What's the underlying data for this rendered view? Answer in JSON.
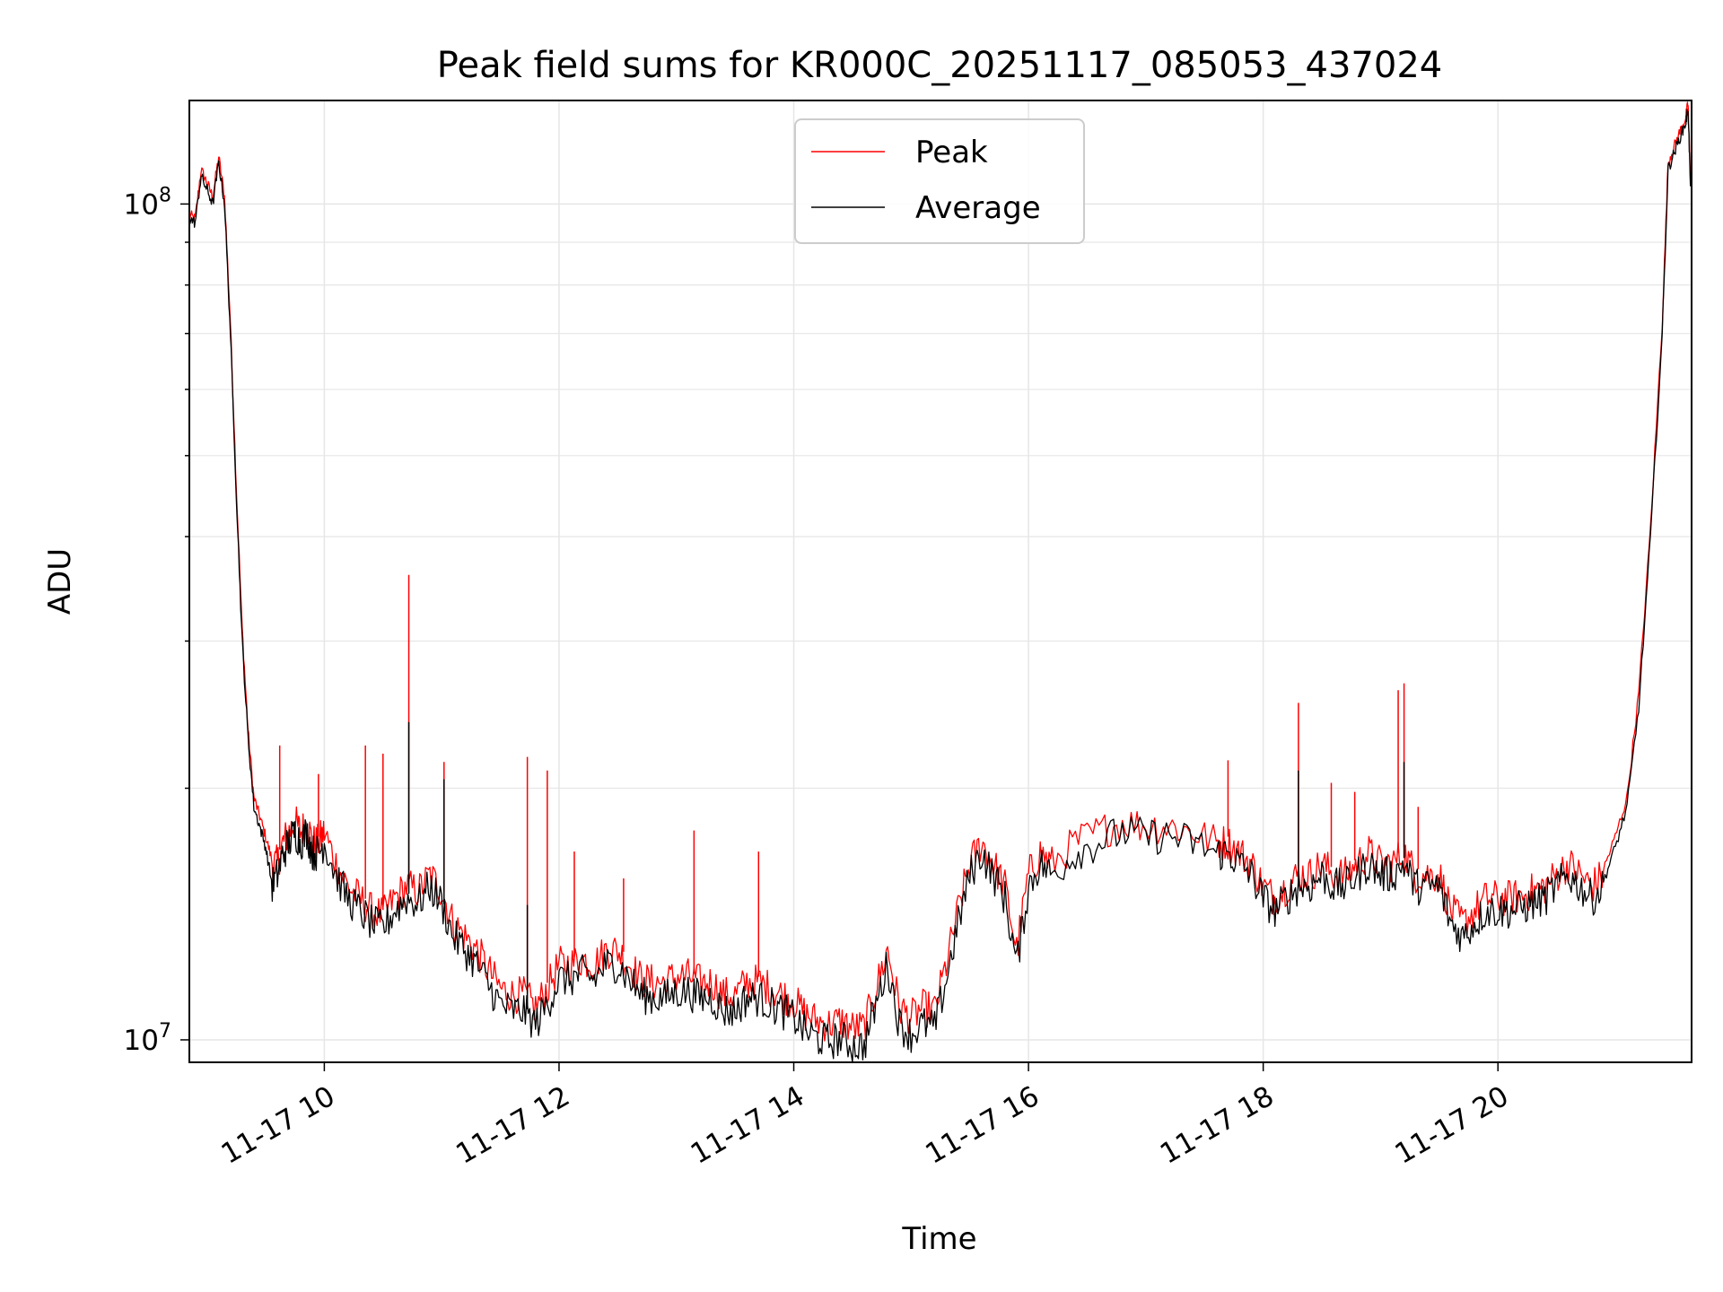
{
  "chart_data": {
    "type": "line",
    "title": "Peak field sums for KR000C_20251117_085053_437024",
    "xlabel": "Time",
    "ylabel": "ADU",
    "x_unit": "hours of 2025-11-17",
    "xlim": [
      8.85,
      21.65
    ],
    "ylim": [
      9400000,
      133000000
    ],
    "yscale": "log",
    "grid": true,
    "legend_position": "upper-center",
    "x_ticks": [
      {
        "value": 10,
        "label": "11-17 10"
      },
      {
        "value": 12,
        "label": "11-17 12"
      },
      {
        "value": 14,
        "label": "11-17 14"
      },
      {
        "value": 16,
        "label": "11-17 16"
      },
      {
        "value": 18,
        "label": "11-17 18"
      },
      {
        "value": 20,
        "label": "11-17 20"
      }
    ],
    "y_ticks": [
      {
        "value": 10000000,
        "base": "10",
        "exp": "7"
      },
      {
        "value": 100000000,
        "base": "10",
        "exp": "8"
      }
    ],
    "series": [
      {
        "name": "Average",
        "color": "#000000",
        "x": [
          8.85,
          8.9,
          8.95,
          9.0,
          9.05,
          9.1,
          9.15,
          9.2,
          9.25,
          9.3,
          9.35,
          9.4,
          9.45,
          9.5,
          9.55,
          9.6,
          9.65,
          9.7,
          9.75,
          9.8,
          9.85,
          9.9,
          9.95,
          10.0,
          10.1,
          10.2,
          10.3,
          10.4,
          10.5,
          10.6,
          10.7,
          10.8,
          10.9,
          11.0,
          11.1,
          11.2,
          11.3,
          11.4,
          11.5,
          11.6,
          11.7,
          11.8,
          11.9,
          12.0,
          12.1,
          12.2,
          12.3,
          12.4,
          12.5,
          12.6,
          12.7,
          12.8,
          12.9,
          13.0,
          13.1,
          13.2,
          13.3,
          13.4,
          13.5,
          13.6,
          13.7,
          13.8,
          13.9,
          14.0,
          14.1,
          14.2,
          14.3,
          14.4,
          14.5,
          14.6,
          14.7,
          14.8,
          14.9,
          15.0,
          15.1,
          15.2,
          15.3,
          15.4,
          15.5,
          15.6,
          15.7,
          15.8,
          15.9,
          16.0,
          16.1,
          16.2,
          16.4,
          16.6,
          16.8,
          17.0,
          17.2,
          17.4,
          17.6,
          17.7,
          17.8,
          17.9,
          18.0,
          18.1,
          18.2,
          18.3,
          18.4,
          18.5,
          18.6,
          18.7,
          18.8,
          18.9,
          19.0,
          19.1,
          19.2,
          19.3,
          19.4,
          19.5,
          19.6,
          19.7,
          19.8,
          19.9,
          20.0,
          20.1,
          20.2,
          20.3,
          20.4,
          20.5,
          20.6,
          20.7,
          20.8,
          20.9,
          21.0,
          21.1,
          21.2,
          21.3,
          21.4,
          21.45,
          21.5,
          21.55,
          21.6,
          21.62,
          21.64
        ],
        "values": [
          96000000,
          95000000,
          108000000,
          104000000,
          100000000,
          112000000,
          100000000,
          70000000,
          45000000,
          30000000,
          23000000,
          19000000,
          18000000,
          17000000,
          15500000,
          16000000,
          17000000,
          17500000,
          18000000,
          17500000,
          18000000,
          17000000,
          17000000,
          17500000,
          16000000,
          15000000,
          14500000,
          14000000,
          13800000,
          14500000,
          15000000,
          14800000,
          15500000,
          14800000,
          13500000,
          13000000,
          12500000,
          11800000,
          11200000,
          11000000,
          11000000,
          10600000,
          11200000,
          12000000,
          12000000,
          12200000,
          12000000,
          12500000,
          12500000,
          12000000,
          11500000,
          11400000,
          11400000,
          11600000,
          11600000,
          11400000,
          11400000,
          11000000,
          11000000,
          11400000,
          11400000,
          11200000,
          11000000,
          10800000,
          10400000,
          10200000,
          10100000,
          10200000,
          10000000,
          10000000,
          11200000,
          12500000,
          10600000,
          10300000,
          10600000,
          10500000,
          12000000,
          14000000,
          16000000,
          17000000,
          16000000,
          15000000,
          12500000,
          15500000,
          16500000,
          16000000,
          17000000,
          17500000,
          18000000,
          17800000,
          17800000,
          17500000,
          17000000,
          17000000,
          16500000,
          16000000,
          15000000,
          14500000,
          15000000,
          15500000,
          15500000,
          16000000,
          15500000,
          15500000,
          16000000,
          16500000,
          16000000,
          16000000,
          16500000,
          15500000,
          15500000,
          15500000,
          14000000,
          13500000,
          14000000,
          14500000,
          14500000,
          14500000,
          14600000,
          14800000,
          15000000,
          15500000,
          16000000,
          15500000,
          15000000,
          15500000,
          17000000,
          19000000,
          25000000,
          40000000,
          70000000,
          110000000,
          115000000,
          120000000,
          125000000,
          130000000,
          105000000
        ]
      },
      {
        "name": "Peak",
        "color": "#ff0000",
        "x": [
          8.85,
          8.9,
          8.95,
          9.0,
          9.05,
          9.1,
          9.15,
          9.2,
          9.25,
          9.3,
          9.35,
          9.4,
          9.45,
          9.5,
          9.55,
          9.6,
          9.65,
          9.7,
          9.75,
          9.8,
          9.85,
          9.9,
          9.95,
          10.0,
          10.1,
          10.2,
          10.3,
          10.4,
          10.5,
          10.6,
          10.7,
          10.8,
          10.9,
          11.0,
          11.1,
          11.2,
          11.3,
          11.4,
          11.5,
          11.6,
          11.7,
          11.8,
          11.9,
          12.0,
          12.1,
          12.2,
          12.3,
          12.4,
          12.5,
          12.6,
          12.7,
          12.8,
          12.9,
          13.0,
          13.1,
          13.2,
          13.3,
          13.4,
          13.5,
          13.6,
          13.7,
          13.8,
          13.9,
          14.0,
          14.1,
          14.2,
          14.3,
          14.4,
          14.5,
          14.6,
          14.7,
          14.8,
          14.9,
          15.0,
          15.1,
          15.2,
          15.3,
          15.4,
          15.5,
          15.6,
          15.7,
          15.8,
          15.9,
          16.0,
          16.1,
          16.2,
          16.4,
          16.6,
          16.8,
          17.0,
          17.2,
          17.4,
          17.6,
          17.7,
          17.8,
          17.9,
          18.0,
          18.1,
          18.2,
          18.3,
          18.4,
          18.5,
          18.6,
          18.7,
          18.8,
          18.9,
          19.0,
          19.1,
          19.2,
          19.3,
          19.4,
          19.5,
          19.6,
          19.7,
          19.8,
          19.9,
          20.0,
          20.1,
          20.2,
          20.3,
          20.4,
          20.5,
          20.6,
          20.7,
          20.8,
          20.9,
          21.0,
          21.1,
          21.2,
          21.3,
          21.4,
          21.45,
          21.5,
          21.55,
          21.6,
          21.62,
          21.64
        ],
        "values": [
          97000000,
          96000000,
          110000000,
          106000000,
          102000000,
          114000000,
          102000000,
          72000000,
          46000000,
          31000000,
          23500000,
          19500000,
          18500000,
          17500000,
          16500000,
          16500000,
          17500000,
          18000000,
          18500000,
          18000000,
          18500000,
          17500000,
          17500000,
          18000000,
          16500000,
          15500000,
          15000000,
          14500000,
          14300000,
          15000000,
          15500000,
          15300000,
          16000000,
          15300000,
          14000000,
          13500000,
          13000000,
          12300000,
          11700000,
          11500000,
          11500000,
          11100000,
          11700000,
          12500000,
          12500000,
          12700000,
          12500000,
          13000000,
          13000000,
          12500000,
          12000000,
          11900000,
          11900000,
          12100000,
          12100000,
          11900000,
          11900000,
          11500000,
          11500000,
          11900000,
          11900000,
          11700000,
          11500000,
          11300000,
          10900000,
          10700000,
          10600000,
          10700000,
          10500000,
          10500000,
          11700000,
          13000000,
          11100000,
          10800000,
          11100000,
          11000000,
          12500000,
          14500000,
          16500000,
          17500000,
          16500000,
          15500000,
          13000000,
          16000000,
          17000000,
          16500000,
          17500000,
          18000000,
          18500000,
          18300000,
          18300000,
          18000000,
          17500000,
          17500000,
          17000000,
          16500000,
          15500000,
          15000000,
          15500000,
          16000000,
          16000000,
          16500000,
          16000000,
          16000000,
          16500000,
          17000000,
          16500000,
          16500000,
          17000000,
          16000000,
          16000000,
          16000000,
          14500000,
          14000000,
          14500000,
          15000000,
          15000000,
          15000000,
          15100000,
          15300000,
          15500000,
          16000000,
          16500000,
          16000000,
          15500000,
          16000000,
          17500000,
          19500000,
          26000000,
          41000000,
          72000000,
          112000000,
          117000000,
          122000000,
          127000000,
          132000000,
          107000000
        ]
      }
    ],
    "spikes": {
      "Peak": [
        {
          "x": 9.62,
          "value": 22500000
        },
        {
          "x": 9.95,
          "value": 20800000
        },
        {
          "x": 10.35,
          "value": 22500000
        },
        {
          "x": 10.5,
          "value": 22000000
        },
        {
          "x": 10.72,
          "value": 36000000
        },
        {
          "x": 11.02,
          "value": 21500000
        },
        {
          "x": 11.73,
          "value": 21800000
        },
        {
          "x": 11.9,
          "value": 21000000
        },
        {
          "x": 12.13,
          "value": 16800000
        },
        {
          "x": 12.55,
          "value": 15600000
        },
        {
          "x": 13.15,
          "value": 17800000
        },
        {
          "x": 13.7,
          "value": 16800000
        },
        {
          "x": 17.7,
          "value": 21600000
        },
        {
          "x": 18.3,
          "value": 25300000
        },
        {
          "x": 18.58,
          "value": 20300000
        },
        {
          "x": 18.78,
          "value": 19800000
        },
        {
          "x": 19.15,
          "value": 26200000
        },
        {
          "x": 19.2,
          "value": 26700000
        },
        {
          "x": 19.32,
          "value": 19000000
        }
      ],
      "Average": [
        {
          "x": 10.72,
          "value": 24000000
        },
        {
          "x": 11.02,
          "value": 20500000
        },
        {
          "x": 11.73,
          "value": 14500000
        },
        {
          "x": 18.3,
          "value": 21000000
        },
        {
          "x": 19.2,
          "value": 21500000
        }
      ]
    }
  }
}
